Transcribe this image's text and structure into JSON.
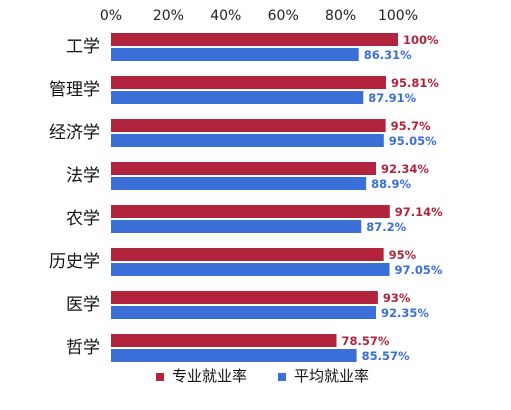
{
  "chart_data": {
    "type": "bar",
    "orientation": "horizontal",
    "categories": [
      "工学",
      "管理学",
      "经济学",
      "法学",
      "农学",
      "历史学",
      "医学",
      "哲学"
    ],
    "series": [
      {
        "name": "专业就业率",
        "color": "#B2243D",
        "values": [
          100,
          95.81,
          95.7,
          92.34,
          97.14,
          95,
          93,
          78.57
        ],
        "labels": [
          "100%",
          "95.81%",
          "95.7%",
          "92.34%",
          "97.14%",
          "95%",
          "93%",
          "78.57%"
        ]
      },
      {
        "name": "平均就业率",
        "color": "#3A6FD8",
        "values": [
          86.31,
          87.91,
          95.05,
          88.9,
          87.2,
          97.05,
          92.35,
          85.57
        ],
        "labels": [
          "86.31%",
          "87.91%",
          "95.05%",
          "88.9%",
          "87.2%",
          "97.05%",
          "92.35%",
          "85.57%"
        ]
      }
    ],
    "x_ticks": [
      "0%",
      "20%",
      "40%",
      "60%",
      "80%",
      "100%"
    ],
    "xlim": [
      0,
      100
    ],
    "grid": false,
    "legend_position": "bottom",
    "title": "",
    "xlabel": "",
    "ylabel": ""
  }
}
